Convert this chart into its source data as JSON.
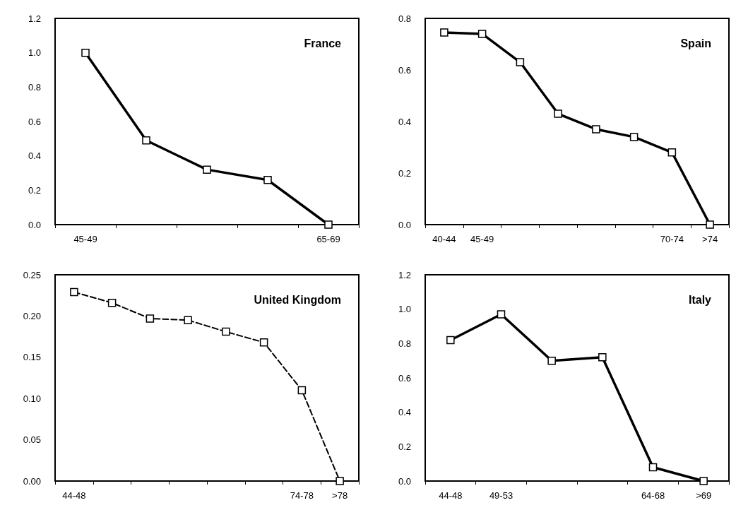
{
  "chart_data": [
    {
      "type": "line",
      "title": "France",
      "categories": [
        "45-49",
        null,
        null,
        null,
        "65-69"
      ],
      "values": [
        1.0,
        0.49,
        0.32,
        0.26,
        0.0
      ],
      "color": "#000000",
      "ylim": [
        0,
        1.2
      ],
      "yticks": [
        {
          "value": 0,
          "label": "0.0"
        },
        0.2,
        0.4,
        0.6,
        0.8,
        {
          "value": 1,
          "label": "1.0"
        },
        1.2
      ],
      "grid": false,
      "marker": "square",
      "line_style": "solid"
    },
    {
      "type": "line",
      "title": "Spain",
      "categories": [
        "40-44",
        "45-49",
        null,
        null,
        null,
        null,
        "70-74",
        ">74"
      ],
      "values": [
        0.745,
        0.74,
        0.63,
        0.43,
        0.37,
        0.34,
        0.28,
        0.0
      ],
      "color": "#000000",
      "ylim": [
        0,
        0.8
      ],
      "yticks": [
        {
          "value": 0,
          "label": "0.0"
        },
        0.2,
        0.4,
        0.6,
        0.8
      ],
      "grid": false,
      "marker": "square",
      "line_style": "solid"
    },
    {
      "type": "line",
      "title": "United Kingdom",
      "categories": [
        "44-48",
        null,
        null,
        null,
        null,
        null,
        "74-78",
        ">78"
      ],
      "values": [
        0.229,
        0.216,
        0.197,
        0.195,
        0.181,
        0.168,
        0.11,
        0.0
      ],
      "color": "#000000",
      "ylim": [
        0,
        0.25
      ],
      "yticks": [
        {
          "value": 0,
          "label": "0.00"
        },
        0.05,
        {
          "value": 0.1,
          "label": "0.10"
        },
        0.15,
        {
          "value": 0.2,
          "label": "0.20"
        },
        0.25
      ],
      "grid": false,
      "marker": "square",
      "line_style": "dashed"
    },
    {
      "type": "line",
      "title": "Italy",
      "categories": [
        "44-48",
        "49-53",
        null,
        null,
        "64-68",
        ">69"
      ],
      "values": [
        0.82,
        0.97,
        0.7,
        0.72,
        0.08,
        0.0
      ],
      "color": "#000000",
      "ylim": [
        0,
        1.2
      ],
      "yticks": [
        {
          "value": 0,
          "label": "0.0"
        },
        0.2,
        0.4,
        0.6,
        0.8,
        {
          "value": 1,
          "label": "1.0"
        },
        1.2
      ],
      "grid": false,
      "marker": "square",
      "line_style": "solid"
    }
  ]
}
